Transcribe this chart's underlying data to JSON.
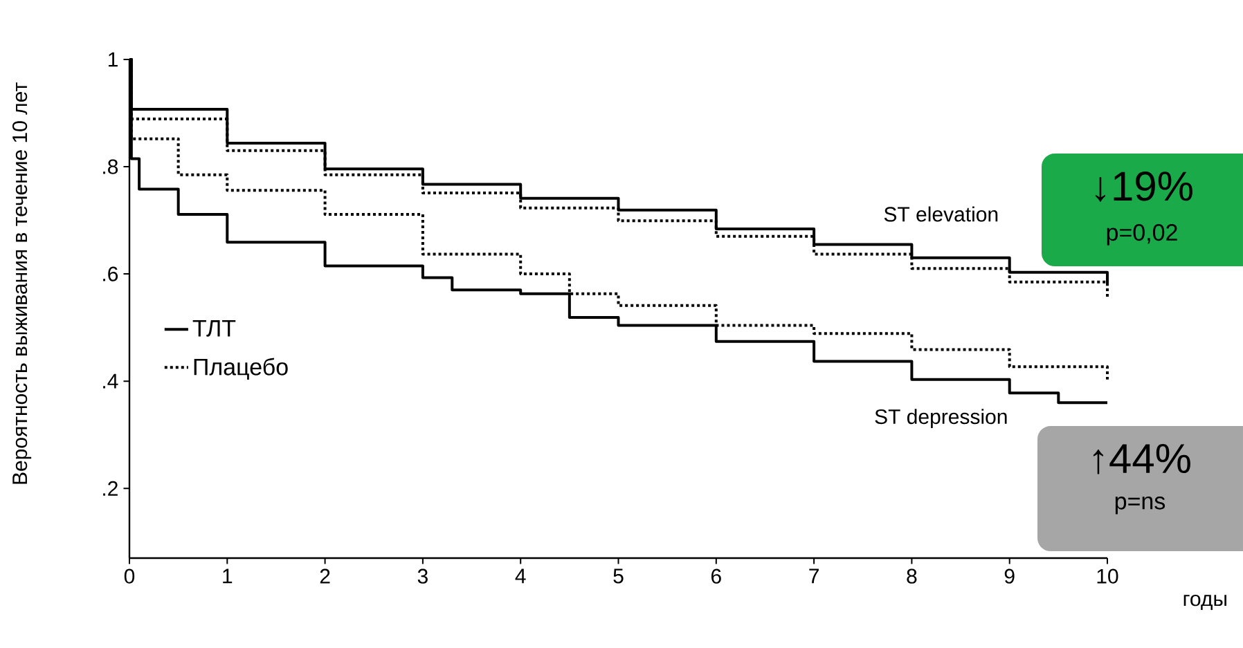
{
  "chart_data": {
    "type": "step",
    "ylabel": "Вероятность выживания в течение 10 лет",
    "xlabel": "годы",
    "xlim": [
      0,
      10
    ],
    "ylim": [
      0.07,
      1
    ],
    "xticks": [
      0,
      1,
      2,
      3,
      4,
      5,
      6,
      7,
      8,
      9,
      10
    ],
    "yticks": [
      {
        "value": 0.2,
        "label": ".2"
      },
      {
        "value": 0.4,
        "label": ".4"
      },
      {
        "value": 0.6,
        "label": ".6"
      },
      {
        "value": 0.8,
        "label": ".8"
      },
      1
    ],
    "grid": false,
    "legend": "left",
    "marker": "none",
    "series": [
      {
        "name": "ТЛТ",
        "color": "#000000",
        "line_style": "solid",
        "x": [
          0,
          0.02,
          1,
          2,
          3,
          4,
          5,
          6,
          7,
          8,
          9,
          10
        ],
        "values": [
          1,
          0.907,
          0.844,
          0.796,
          0.767,
          0.741,
          0.719,
          0.684,
          0.655,
          0.63,
          0.603,
          0.578
        ]
      },
      {
        "name": "Плацебо",
        "color": "#000000",
        "line_style": "dotted",
        "x": [
          0,
          0.02,
          1,
          2,
          3,
          4,
          5,
          6,
          7,
          8,
          9,
          10
        ],
        "values": [
          1,
          0.889,
          0.83,
          0.785,
          0.751,
          0.723,
          0.699,
          0.67,
          0.637,
          0.61,
          0.585,
          0.556
        ]
      },
      {
        "color": "#000000",
        "line_style": "solid",
        "x": [
          0,
          0.02,
          0.1,
          0.5,
          1,
          2,
          3,
          3.3,
          4,
          4.5,
          5,
          6,
          7,
          8,
          9,
          9.5,
          10
        ],
        "values": [
          1,
          0.815,
          0.758,
          0.711,
          0.659,
          0.615,
          0.593,
          0.57,
          0.563,
          0.519,
          0.504,
          0.474,
          0.437,
          0.403,
          0.378,
          0.36,
          0.36
        ]
      },
      {
        "color": "#000000",
        "line_style": "dotted",
        "x": [
          0,
          0.02,
          0.5,
          1,
          2,
          3,
          4,
          4.5,
          5,
          6,
          7,
          8,
          9,
          10
        ],
        "values": [
          1,
          0.852,
          0.785,
          0.756,
          0.711,
          0.637,
          0.6,
          0.563,
          0.541,
          0.504,
          0.489,
          0.459,
          0.427,
          0.403
        ]
      }
    ],
    "annotations": [
      "ST elevation",
      "ST depression",
      "↓19%",
      "p=0,02",
      "↑44%",
      "p=ns"
    ]
  }
}
